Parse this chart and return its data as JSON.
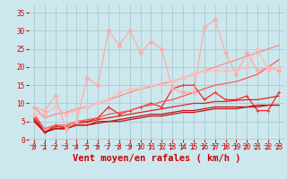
{
  "xlabel": "Vent moyen/en rafales ( km/h )",
  "bg_color": "#cce8ee",
  "grid_color": "#aacccc",
  "ylim": [
    0,
    37
  ],
  "xlim": [
    -0.5,
    23.5
  ],
  "lines": [
    {
      "color": "#ff2222",
      "lw": 0.9,
      "marker": "+",
      "ms": 3.5,
      "y": [
        7,
        2,
        4,
        3,
        5,
        5,
        6,
        9,
        7,
        8,
        9,
        10,
        9,
        14,
        15,
        15,
        11,
        13,
        11,
        11,
        12,
        8,
        8,
        13
      ]
    },
    {
      "color": "#dd2222",
      "lw": 0.9,
      "marker": null,
      "y": [
        6,
        2,
        3.5,
        3.5,
        4.5,
        4.8,
        5.5,
        6,
        6.5,
        7,
        7.5,
        8,
        8.5,
        9,
        9.5,
        10,
        10,
        10.5,
        10.5,
        10.8,
        11,
        11,
        11.5,
        12
      ]
    },
    {
      "color": "#bb1111",
      "lw": 0.9,
      "marker": null,
      "y": [
        5.5,
        2,
        3,
        3,
        4,
        4,
        5,
        5,
        5.5,
        6,
        6.5,
        7,
        7,
        7.5,
        8,
        8,
        8.5,
        9,
        9,
        9,
        9,
        9.5,
        9.5,
        9.5
      ]
    },
    {
      "color": "#cc1111",
      "lw": 0.9,
      "marker": null,
      "y": [
        5,
        2,
        3,
        3,
        4,
        4,
        4.5,
        5,
        5,
        5.5,
        6,
        6.5,
        6.5,
        7,
        7.5,
        7.5,
        8,
        8.5,
        8.5,
        8.5,
        9,
        9,
        9.5,
        9.5
      ]
    },
    {
      "color": "#ff5555",
      "lw": 0.9,
      "marker": null,
      "y": [
        7,
        3,
        4,
        4,
        5,
        5.5,
        6,
        7,
        7.5,
        8,
        9,
        9.5,
        10.5,
        11,
        12,
        13,
        14,
        15,
        15.5,
        16,
        17,
        18,
        20,
        22
      ]
    },
    {
      "color": "#ff8888",
      "lw": 0.9,
      "marker": null,
      "y": [
        9,
        6,
        7,
        7.5,
        8.5,
        9,
        10,
        11,
        12,
        13,
        14,
        14.5,
        15.5,
        16,
        17,
        18,
        19,
        20,
        21,
        22,
        23,
        24,
        25,
        26
      ]
    },
    {
      "color": "#ffaaaa",
      "lw": 0.9,
      "marker": "D",
      "ms": 2.5,
      "y": [
        9,
        8,
        12,
        3,
        5,
        17,
        15,
        30,
        26,
        30,
        24,
        27,
        25,
        14,
        13,
        13,
        31,
        33,
        24,
        18,
        24,
        19,
        20,
        19
      ]
    },
    {
      "color": "#ffbbbb",
      "lw": 0.9,
      "marker": "D",
      "ms": 2.5,
      "y": [
        7,
        7,
        9,
        7,
        8,
        9,
        10,
        11,
        13,
        14,
        14,
        15,
        15,
        16,
        17,
        18,
        19,
        19,
        19,
        19,
        20,
        25,
        19,
        20
      ]
    }
  ],
  "x_ticks": [
    0,
    1,
    2,
    3,
    4,
    5,
    6,
    7,
    8,
    9,
    10,
    11,
    12,
    13,
    14,
    15,
    16,
    17,
    18,
    19,
    20,
    21,
    22,
    23
  ],
  "y_ticks": [
    0,
    5,
    10,
    15,
    20,
    25,
    30,
    35
  ],
  "tick_color": "#cc0000",
  "label_color": "#cc0000",
  "arrow_color": "#cc2222",
  "xlabel_fontsize": 7.5,
  "tick_fontsize": 5.5
}
